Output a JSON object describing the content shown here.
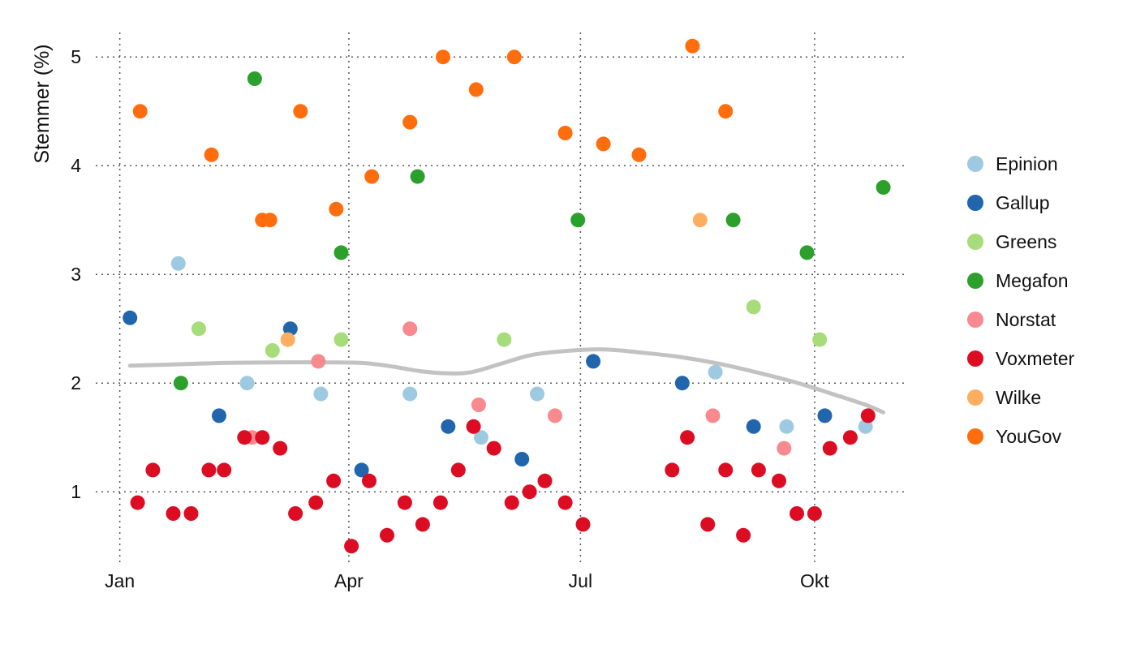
{
  "chart_data": {
    "type": "scatter",
    "title": "",
    "xlabel": "",
    "ylabel": "Stemmer (%)",
    "x_ticks": [
      {
        "day": 0,
        "label": "Jan"
      },
      {
        "day": 90,
        "label": "Apr"
      },
      {
        "day": 181,
        "label": "Jul"
      },
      {
        "day": 273,
        "label": "Okt"
      }
    ],
    "y_ticks": [
      1,
      2,
      3,
      4,
      5
    ],
    "xlim": [
      -12,
      310
    ],
    "ylim": [
      0.3,
      5.3
    ],
    "grid": true,
    "legend_position": "right",
    "series": [
      {
        "name": "Epinion",
        "color": "#9ecae1",
        "points": [
          {
            "x": 23,
            "y": 3.1
          },
          {
            "x": 50,
            "y": 2.0
          },
          {
            "x": 79,
            "y": 1.9
          },
          {
            "x": 114,
            "y": 1.9
          },
          {
            "x": 142,
            "y": 1.5
          },
          {
            "x": 164,
            "y": 1.9
          },
          {
            "x": 234,
            "y": 2.1
          },
          {
            "x": 262,
            "y": 1.6
          },
          {
            "x": 293,
            "y": 1.6
          }
        ]
      },
      {
        "name": "Gallup",
        "color": "#2166ac",
        "points": [
          {
            "x": 4,
            "y": 2.6
          },
          {
            "x": 39,
            "y": 1.7
          },
          {
            "x": 67,
            "y": 2.5
          },
          {
            "x": 95,
            "y": 1.2
          },
          {
            "x": 129,
            "y": 1.6
          },
          {
            "x": 158,
            "y": 1.3
          },
          {
            "x": 186,
            "y": 2.2
          },
          {
            "x": 221,
            "y": 2.0
          },
          {
            "x": 249,
            "y": 1.6
          },
          {
            "x": 277,
            "y": 1.7
          }
        ]
      },
      {
        "name": "Greens",
        "color": "#a6dc7a",
        "points": [
          {
            "x": 31,
            "y": 2.5
          },
          {
            "x": 60,
            "y": 2.3
          },
          {
            "x": 87,
            "y": 2.4
          },
          {
            "x": 151,
            "y": 2.4
          },
          {
            "x": 249,
            "y": 2.7
          },
          {
            "x": 275,
            "y": 2.4
          }
        ]
      },
      {
        "name": "Megafon",
        "color": "#2ca02c",
        "points": [
          {
            "x": 24,
            "y": 2.0
          },
          {
            "x": 53,
            "y": 4.8
          },
          {
            "x": 87,
            "y": 3.2
          },
          {
            "x": 117,
            "y": 3.9
          },
          {
            "x": 180,
            "y": 3.5
          },
          {
            "x": 241,
            "y": 3.5
          },
          {
            "x": 270,
            "y": 3.2
          },
          {
            "x": 300,
            "y": 3.8
          }
        ]
      },
      {
        "name": "Norstat",
        "color": "#f88a8f",
        "points": [
          {
            "x": 52,
            "y": 1.5
          },
          {
            "x": 78,
            "y": 2.2
          },
          {
            "x": 114,
            "y": 2.5
          },
          {
            "x": 141,
            "y": 1.8
          },
          {
            "x": 171,
            "y": 1.7
          },
          {
            "x": 233,
            "y": 1.7
          },
          {
            "x": 261,
            "y": 1.4
          }
        ]
      },
      {
        "name": "Voxmeter",
        "color": "#dc0d23",
        "points": [
          {
            "x": 7,
            "y": 0.9
          },
          {
            "x": 13,
            "y": 1.2
          },
          {
            "x": 21,
            "y": 0.8
          },
          {
            "x": 28,
            "y": 0.8
          },
          {
            "x": 35,
            "y": 1.2
          },
          {
            "x": 41,
            "y": 1.2
          },
          {
            "x": 49,
            "y": 1.5
          },
          {
            "x": 56,
            "y": 1.5
          },
          {
            "x": 63,
            "y": 1.4
          },
          {
            "x": 69,
            "y": 0.8
          },
          {
            "x": 77,
            "y": 0.9
          },
          {
            "x": 84,
            "y": 1.1
          },
          {
            "x": 91,
            "y": 0.5
          },
          {
            "x": 98,
            "y": 1.1
          },
          {
            "x": 105,
            "y": 0.6
          },
          {
            "x": 112,
            "y": 0.9
          },
          {
            "x": 119,
            "y": 0.7
          },
          {
            "x": 126,
            "y": 0.9
          },
          {
            "x": 133,
            "y": 1.2
          },
          {
            "x": 139,
            "y": 1.6
          },
          {
            "x": 147,
            "y": 1.4
          },
          {
            "x": 154,
            "y": 0.9
          },
          {
            "x": 161,
            "y": 1.0
          },
          {
            "x": 167,
            "y": 1.1
          },
          {
            "x": 175,
            "y": 0.9
          },
          {
            "x": 182,
            "y": 0.7
          },
          {
            "x": 217,
            "y": 1.2
          },
          {
            "x": 223,
            "y": 1.5
          },
          {
            "x": 231,
            "y": 0.7
          },
          {
            "x": 238,
            "y": 1.2
          },
          {
            "x": 245,
            "y": 0.6
          },
          {
            "x": 251,
            "y": 1.2
          },
          {
            "x": 259,
            "y": 1.1
          },
          {
            "x": 266,
            "y": 0.8
          },
          {
            "x": 273,
            "y": 0.8
          },
          {
            "x": 279,
            "y": 1.4
          },
          {
            "x": 287,
            "y": 1.5
          },
          {
            "x": 294,
            "y": 1.7
          }
        ]
      },
      {
        "name": "Wilke",
        "color": "#fdae61",
        "points": [
          {
            "x": 66,
            "y": 2.4
          },
          {
            "x": 228,
            "y": 3.5
          }
        ]
      },
      {
        "name": "YouGov",
        "color": "#ff6d0d",
        "points": [
          {
            "x": 8,
            "y": 4.5
          },
          {
            "x": 36,
            "y": 4.1
          },
          {
            "x": 56,
            "y": 3.5
          },
          {
            "x": 59,
            "y": 3.5
          },
          {
            "x": 71,
            "y": 4.5
          },
          {
            "x": 85,
            "y": 3.6
          },
          {
            "x": 99,
            "y": 3.9
          },
          {
            "x": 114,
            "y": 4.4
          },
          {
            "x": 127,
            "y": 5.0
          },
          {
            "x": 140,
            "y": 4.7
          },
          {
            "x": 155,
            "y": 5.0
          },
          {
            "x": 175,
            "y": 4.3
          },
          {
            "x": 190,
            "y": 4.2
          },
          {
            "x": 204,
            "y": 4.1
          },
          {
            "x": 225,
            "y": 5.1
          },
          {
            "x": 238,
            "y": 4.5
          }
        ]
      }
    ],
    "trend": {
      "color": "#c2c2c2",
      "points": [
        {
          "x": 4,
          "y": 2.16
        },
        {
          "x": 20,
          "y": 2.17
        },
        {
          "x": 40,
          "y": 2.185
        },
        {
          "x": 60,
          "y": 2.19
        },
        {
          "x": 80,
          "y": 2.19
        },
        {
          "x": 95,
          "y": 2.185
        },
        {
          "x": 105,
          "y": 2.16
        },
        {
          "x": 118,
          "y": 2.11
        },
        {
          "x": 128,
          "y": 2.09
        },
        {
          "x": 138,
          "y": 2.1
        },
        {
          "x": 150,
          "y": 2.18
        },
        {
          "x": 162,
          "y": 2.26
        },
        {
          "x": 175,
          "y": 2.295
        },
        {
          "x": 190,
          "y": 2.31
        },
        {
          "x": 205,
          "y": 2.28
        },
        {
          "x": 220,
          "y": 2.24
        },
        {
          "x": 235,
          "y": 2.18
        },
        {
          "x": 250,
          "y": 2.1
        },
        {
          "x": 265,
          "y": 2.01
        },
        {
          "x": 280,
          "y": 1.9
        },
        {
          "x": 293,
          "y": 1.8
        },
        {
          "x": 300,
          "y": 1.73
        }
      ]
    }
  }
}
